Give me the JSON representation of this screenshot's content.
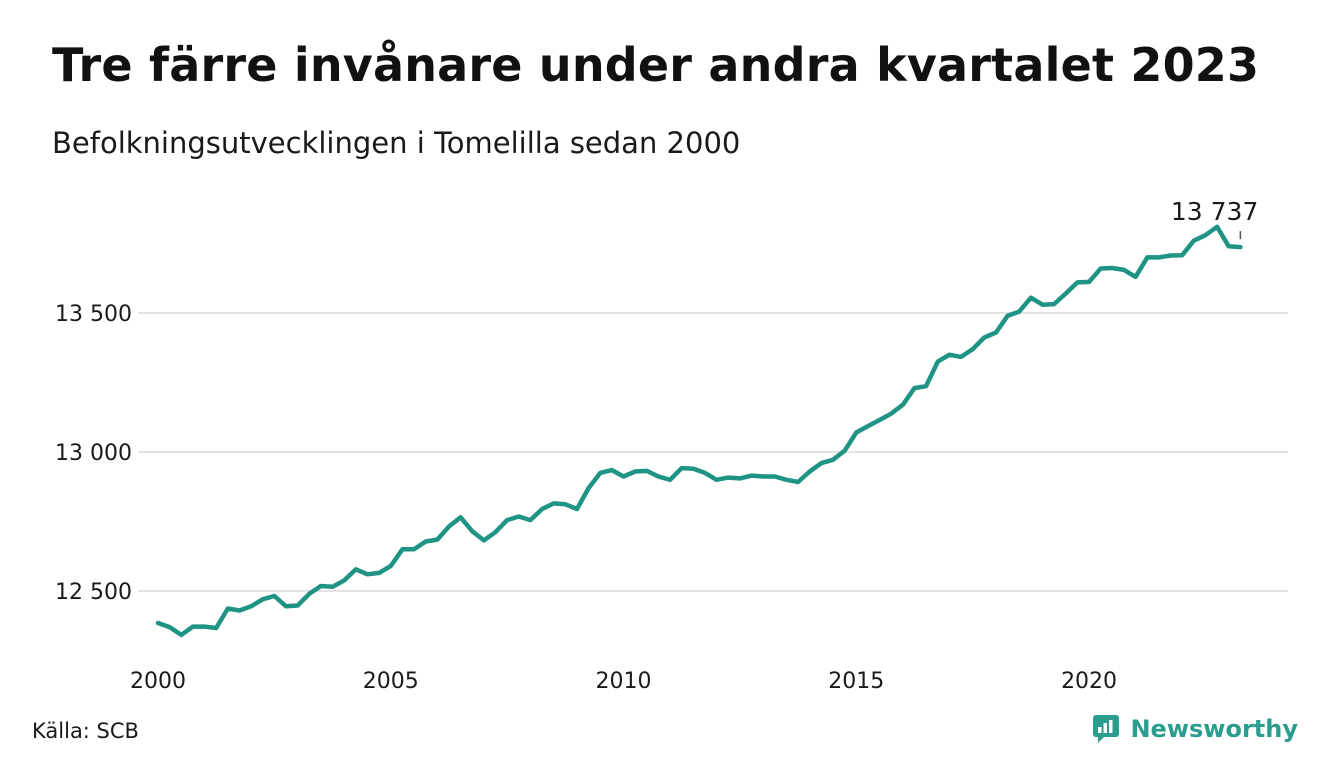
{
  "header": {
    "title": "Tre färre invånare under andra kvartalet 2023",
    "subtitle": "Befolkningsutvecklingen i Tomelilla sedan 2000"
  },
  "footer": {
    "source": "Källa: SCB",
    "brand": "Newsworthy",
    "brand_color": "#2a9d8f"
  },
  "chart_data": {
    "type": "line",
    "line_color": "#1f9484",
    "grid": true,
    "y_ticks": [
      12500,
      13000,
      13500
    ],
    "y_tick_labels": [
      "12 500",
      "13 000",
      "13 500"
    ],
    "x_ticks": [
      2000,
      2005,
      2010,
      2015,
      2020
    ],
    "x_tick_labels": [
      "2000",
      "2005",
      "2010",
      "2015",
      "2020"
    ],
    "xlim": [
      2000,
      2023.5
    ],
    "ylim": [
      12300,
      13900
    ],
    "last_value_label": "13 737",
    "series": [
      {
        "x": [
          2000.0,
          2000.25,
          2000.5,
          2000.75,
          2001.0,
          2001.25,
          2001.5,
          2001.75,
          2002.0,
          2002.25,
          2002.5,
          2002.75,
          2003.0,
          2003.25,
          2003.5,
          2003.75,
          2004.0,
          2004.25,
          2004.5,
          2004.75,
          2005.0,
          2005.25,
          2005.5,
          2005.75,
          2006.0,
          2006.25,
          2006.5,
          2006.75,
          2007.0,
          2007.25,
          2007.5,
          2007.75,
          2008.0,
          2008.25,
          2008.5,
          2008.75,
          2009.0,
          2009.25,
          2009.5,
          2009.75,
          2010.0,
          2010.25,
          2010.5,
          2010.75,
          2011.0,
          2011.25,
          2011.5,
          2011.75,
          2012.0,
          2012.25,
          2012.5,
          2012.75,
          2013.0,
          2013.25,
          2013.5,
          2013.75,
          2014.0,
          2014.25,
          2014.5,
          2014.75,
          2015.0,
          2015.25,
          2015.5,
          2015.75,
          2016.0,
          2016.25,
          2016.5,
          2016.75,
          2017.0,
          2017.25,
          2017.5,
          2017.75,
          2018.0,
          2018.25,
          2018.5,
          2018.75,
          2019.0,
          2019.25,
          2019.5,
          2019.75,
          2020.0,
          2020.25,
          2020.5,
          2020.75,
          2021.0,
          2021.25,
          2021.5,
          2021.75,
          2022.0,
          2022.25,
          2022.5,
          2022.75,
          2023.0,
          2023.25
        ],
        "values": [
          12385,
          12370,
          12342,
          12372,
          12372,
          12367,
          12437,
          12430,
          12445,
          12470,
          12482,
          12445,
          12448,
          12490,
          12518,
          12515,
          12538,
          12578,
          12560,
          12565,
          12590,
          12650,
          12650,
          12678,
          12685,
          12732,
          12765,
          12715,
          12682,
          12712,
          12755,
          12768,
          12755,
          12795,
          12815,
          12812,
          12795,
          12870,
          12925,
          12935,
          12912,
          12930,
          12932,
          12912,
          12900,
          12942,
          12940,
          12925,
          12900,
          12908,
          12905,
          12915,
          12912,
          12912,
          12900,
          12892,
          12930,
          12960,
          12972,
          13005,
          13070,
          13093,
          13115,
          13138,
          13170,
          13230,
          13237,
          13325,
          13350,
          13342,
          13370,
          13412,
          13430,
          13490,
          13505,
          13555,
          13530,
          13532,
          13570,
          13610,
          13612,
          13660,
          13662,
          13655,
          13630,
          13700,
          13700,
          13707,
          13708,
          13760,
          13780,
          13810,
          13740,
          13737
        ]
      }
    ]
  }
}
